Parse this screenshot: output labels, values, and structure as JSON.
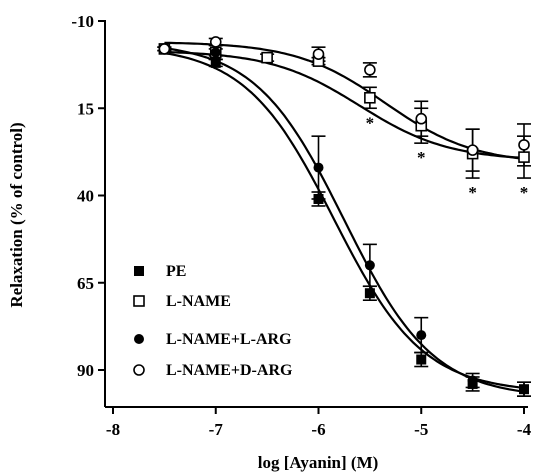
{
  "chart_data": {
    "type": "scatter",
    "xlabel": "log [Ayanin] (M)",
    "ylabel": "Relaxation (% of control)",
    "xlim": [
      -8,
      -4
    ],
    "ylim": [
      -10,
      100
    ],
    "y_inverted": true,
    "x_ticks": [
      -8,
      -7,
      -6,
      -5,
      -4
    ],
    "x_tick_labels": [
      "-8",
      "-7",
      "-6",
      "-5",
      "-4"
    ],
    "y_ticks": [
      -10,
      15,
      40,
      65,
      90
    ],
    "y_tick_labels": [
      "-10",
      "15",
      "40",
      "65",
      "90"
    ],
    "legend_position": "bottom-left",
    "grid": false,
    "series": [
      {
        "name": "PE",
        "marker": "filled-square",
        "x": [
          -7.5,
          -7,
          -6,
          -5.5,
          -5,
          -4.5,
          -4
        ],
        "y": [
          -2,
          2,
          41,
          68,
          87,
          94,
          95.5
        ],
        "err": [
          0.5,
          1,
          2,
          2,
          2,
          2,
          2
        ],
        "fit": {
          "bottom": -3,
          "top": 96.5,
          "logEC50": -5.85,
          "hill": 1.0
        }
      },
      {
        "name": "L-NAME",
        "marker": "open-square",
        "x": [
          -7.5,
          -7,
          -6.5,
          -6,
          -5.5,
          -5,
          -4.5,
          -4
        ],
        "y": [
          -2,
          -1,
          0.5,
          1.5,
          12,
          20,
          28,
          29
        ],
        "err": [
          0.5,
          1,
          1,
          1,
          3,
          5,
          7,
          6
        ],
        "fit": {
          "bottom": -1.5,
          "top": 30,
          "logEC50": -5.6,
          "hill": 1.0
        }
      },
      {
        "name": "L-NAME+L-ARG",
        "marker": "filled-circle",
        "x": [
          -7,
          -6,
          -5.5,
          -5,
          -4.5,
          -4
        ],
        "y": [
          -1,
          32,
          60,
          80,
          93,
          95.5
        ],
        "err": [
          2,
          9,
          6,
          5,
          2,
          2
        ],
        "fit": {
          "bottom": -4,
          "top": 98,
          "logEC50": -5.75,
          "hill": 1.0
        }
      },
      {
        "name": "L-NAME+D-ARG",
        "marker": "open-circle",
        "x": [
          -7.5,
          -7,
          -6,
          -5.5,
          -5,
          -4.5,
          -4
        ],
        "y": [
          -2,
          -4,
          -0.5,
          4,
          18,
          27,
          25.5
        ],
        "err": [
          0.5,
          1,
          2,
          2,
          5,
          6,
          6
        ],
        "fit": {
          "bottom": -4,
          "top": 31,
          "logEC50": -5.35,
          "hill": 1.0
        }
      }
    ],
    "annotations": [
      {
        "text": "*",
        "x": -5.5
      },
      {
        "text": "*",
        "x": -5
      },
      {
        "text": "*",
        "x": -4.5
      },
      {
        "text": "*",
        "x": -4
      }
    ]
  }
}
